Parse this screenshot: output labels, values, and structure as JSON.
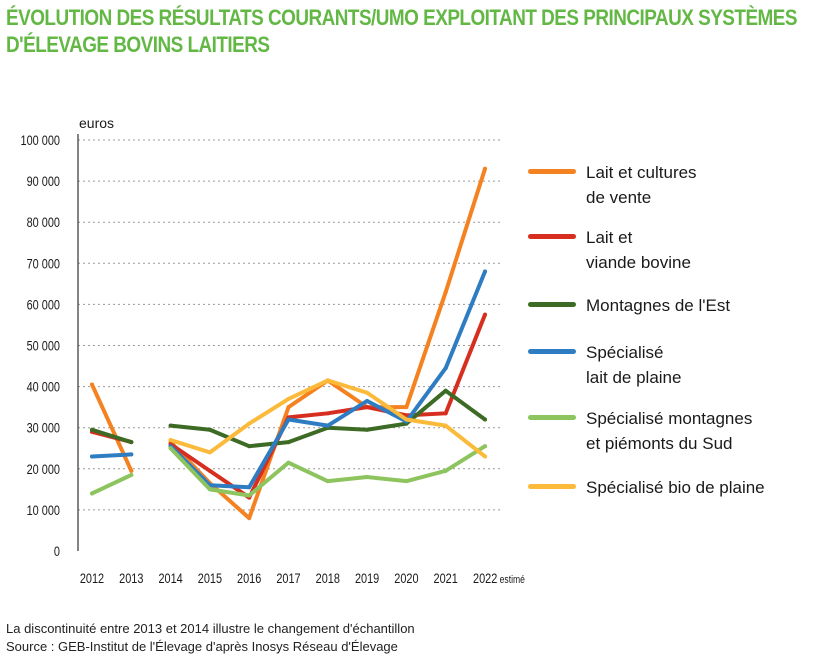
{
  "title": {
    "line1": "ÉVOLUTION DES RÉSULTATS COURANTS/UMO EXPLOITANT DES PRINCIPAUX SYSTÈMES",
    "line2": "D'ÉLEVAGE BOVINS LAITIERS"
  },
  "footer": {
    "note": "La discontinuité entre 2013 et 2014 illustre le changement d'échantillon",
    "source": "Source : GEB-Institut de l'Élevage d'après Inosys Réseau d'Élevage"
  },
  "chart_data": {
    "type": "line",
    "title": "ÉVOLUTION DES RÉSULTATS COURANTS/UMO EXPLOITANT DES PRINCIPAUX SYSTÈMES D'ÉLEVAGE BOVINS LAITIERS",
    "ylabel": "euros",
    "xlabel": "",
    "ylim": [
      0,
      100000
    ],
    "grid": true,
    "legend_position": "right",
    "categories": [
      "2012",
      "2013",
      "2014",
      "2015",
      "2016",
      "2017",
      "2018",
      "2019",
      "2020",
      "2021",
      "2022 estimé"
    ],
    "y_ticks": [
      "0",
      "10 000",
      "20 000",
      "30 000",
      "40 000",
      "50 000",
      "60 000",
      "70 000",
      "80 000",
      "90 000",
      "100 000"
    ],
    "series": [
      {
        "name": "Lait et cultures de vente",
        "name_lines": [
          "Lait et cultures",
          "de vente"
        ],
        "color": "#f58220",
        "values": [
          40500,
          19500,
          26500,
          16500,
          8000,
          35000,
          41500,
          35000,
          35000,
          63000,
          93000
        ]
      },
      {
        "name": "Lait et viande bovine",
        "name_lines": [
          "Lait et",
          "viande bovine"
        ],
        "color": "#d62e1f",
        "values": [
          29000,
          26500,
          26000,
          19500,
          13000,
          32500,
          33500,
          35000,
          33000,
          33500,
          57500
        ]
      },
      {
        "name": "Montagnes de l'Est",
        "name_lines": [
          "Montagnes de l'Est"
        ],
        "color": "#3d6b25",
        "values": [
          29500,
          26500,
          30500,
          29500,
          25500,
          26500,
          30000,
          29500,
          31000,
          39000,
          32000
        ]
      },
      {
        "name": "Spécialisé lait de plaine",
        "name_lines": [
          "Spécialisé",
          "lait de plaine"
        ],
        "color": "#2e7cc2",
        "values": [
          23000,
          23500,
          25500,
          16000,
          15500,
          32000,
          30500,
          36500,
          31500,
          44500,
          68000
        ]
      },
      {
        "name": "Spécialisé montagnes et piémonts du Sud",
        "name_lines": [
          "Spécialisé montagnes",
          "et piémonts du Sud"
        ],
        "color": "#8dc45e",
        "values": [
          14000,
          18500,
          25000,
          15000,
          13500,
          21500,
          17000,
          18000,
          17000,
          19500,
          25500
        ]
      },
      {
        "name": "Spécialisé bio de plaine",
        "name_lines": [
          "Spécialisé bio de plaine"
        ],
        "color": "#fbba3a",
        "values": [
          null,
          null,
          27000,
          24000,
          31000,
          37000,
          41500,
          38500,
          32000,
          30500,
          23000
        ]
      }
    ]
  }
}
